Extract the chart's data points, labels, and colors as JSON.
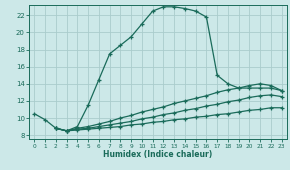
{
  "xlabel": "Humidex (Indice chaleur)",
  "bg_color": "#cce8e8",
  "line_color": "#1a6b5a",
  "grid_color": "#aacccc",
  "xlim": [
    -0.5,
    23.5
  ],
  "ylim": [
    7.5,
    23.2
  ],
  "xticks": [
    0,
    1,
    2,
    3,
    4,
    5,
    6,
    7,
    8,
    9,
    10,
    11,
    12,
    13,
    14,
    15,
    16,
    17,
    18,
    19,
    20,
    21,
    22,
    23
  ],
  "yticks": [
    8,
    10,
    12,
    14,
    16,
    18,
    20,
    22
  ],
  "line1_x": [
    0,
    1,
    2,
    3,
    4,
    5,
    6,
    7,
    8,
    9,
    10,
    11,
    12,
    13,
    14,
    15,
    16,
    17,
    18,
    19,
    20,
    21,
    22,
    23
  ],
  "line1_y": [
    10.5,
    9.8,
    8.8,
    8.5,
    9.0,
    11.5,
    14.5,
    17.5,
    18.5,
    19.5,
    21.0,
    22.5,
    23.0,
    23.0,
    22.8,
    22.5,
    21.8,
    15.0,
    14.0,
    13.5,
    13.5,
    13.5,
    13.5,
    13.2
  ],
  "line2_x": [
    2,
    3,
    4,
    5,
    6,
    7,
    8,
    9,
    10,
    11,
    12,
    13,
    14,
    15,
    16,
    17,
    18,
    19,
    20,
    21,
    22,
    23
  ],
  "line2_y": [
    8.8,
    8.5,
    8.8,
    9.0,
    9.3,
    9.6,
    10.0,
    10.3,
    10.7,
    11.0,
    11.3,
    11.7,
    12.0,
    12.3,
    12.6,
    13.0,
    13.3,
    13.5,
    13.8,
    14.0,
    13.8,
    13.2
  ],
  "line3_x": [
    2,
    3,
    4,
    5,
    6,
    7,
    8,
    9,
    10,
    11,
    12,
    13,
    14,
    15,
    16,
    17,
    18,
    19,
    20,
    21,
    22,
    23
  ],
  "line3_y": [
    8.8,
    8.5,
    8.7,
    8.8,
    9.0,
    9.2,
    9.4,
    9.6,
    9.9,
    10.1,
    10.4,
    10.6,
    10.9,
    11.1,
    11.4,
    11.6,
    11.9,
    12.1,
    12.4,
    12.6,
    12.7,
    12.5
  ],
  "line4_x": [
    2,
    3,
    4,
    5,
    6,
    7,
    8,
    9,
    10,
    11,
    12,
    13,
    14,
    15,
    16,
    17,
    18,
    19,
    20,
    21,
    22,
    23
  ],
  "line4_y": [
    8.8,
    8.5,
    8.6,
    8.7,
    8.8,
    8.9,
    9.0,
    9.2,
    9.3,
    9.5,
    9.6,
    9.8,
    9.9,
    10.1,
    10.2,
    10.4,
    10.5,
    10.7,
    10.9,
    11.0,
    11.2,
    11.2
  ]
}
